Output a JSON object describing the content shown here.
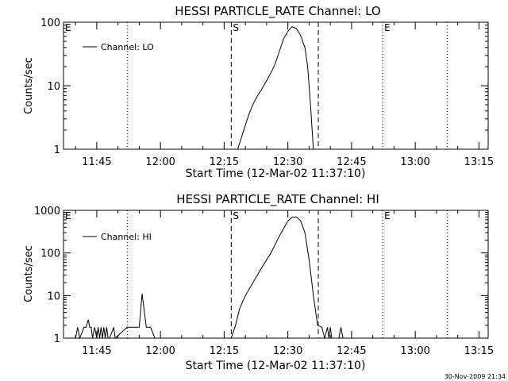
{
  "footer_timestamp": "30-Nov-2009 21:34",
  "chart_data": [
    {
      "type": "line",
      "title": "HESSI PARTICLE_RATE Channel: LO",
      "xlabel": "Start Time (12-Mar-02 11:37:10)",
      "ylabel": "Counts/sec",
      "yscale": "log",
      "ylim": [
        1,
        100
      ],
      "xlim": [
        "11:37:10",
        "13:17:10"
      ],
      "x_ticks": [
        "11:45",
        "12:00",
        "12:15",
        "12:30",
        "12:45",
        "13:00",
        "13:15"
      ],
      "y_ticks": [
        "1",
        "10",
        "100"
      ],
      "legend": {
        "label": "Channel: LO",
        "position": "top-left"
      },
      "markers": [
        {
          "label": "E",
          "time": "11:37:10",
          "style": "dotted"
        },
        {
          "label": "",
          "time": "11:52:10",
          "style": "dotted"
        },
        {
          "label": "S",
          "time": "12:16:40",
          "style": "dashed"
        },
        {
          "label": "",
          "time": "12:37:10",
          "style": "dashed"
        },
        {
          "label": "E",
          "time": "12:52:20",
          "style": "dotted"
        },
        {
          "label": "",
          "time": "13:07:30",
          "style": "dotted"
        }
      ],
      "series": [
        {
          "x": [
            "12:18:10",
            "12:19:10",
            "12:20:10",
            "12:21:00",
            "12:22:00",
            "12:23:00",
            "12:24:00",
            "12:25:00",
            "12:26:00",
            "12:27:00",
            "12:28:00",
            "12:29:00",
            "12:30:00",
            "12:31:00",
            "12:32:00",
            "12:33:00",
            "12:34:00",
            "12:34:40",
            "12:35:20",
            "12:36:00"
          ],
          "y": [
            1.0,
            1.6,
            2.6,
            3.8,
            5.5,
            7.2,
            9.2,
            12,
            16,
            22,
            35,
            55,
            72,
            85,
            80,
            62,
            40,
            20,
            5,
            1.0
          ]
        }
      ]
    },
    {
      "type": "line",
      "title": "HESSI PARTICLE_RATE Channel: HI",
      "xlabel": "Start Time (12-Mar-02 11:37:10)",
      "ylabel": "Counts/sec",
      "yscale": "log",
      "ylim": [
        1,
        1000
      ],
      "xlim": [
        "11:37:10",
        "13:17:10"
      ],
      "x_ticks": [
        "11:45",
        "12:00",
        "12:15",
        "12:30",
        "12:45",
        "13:00",
        "13:15"
      ],
      "y_ticks": [
        "1",
        "10",
        "100",
        "1000"
      ],
      "legend": {
        "label": "Channel: HI",
        "position": "top-left"
      },
      "markers": [
        {
          "label": "E",
          "time": "11:37:10",
          "style": "dotted"
        },
        {
          "label": "",
          "time": "11:52:10",
          "style": "dotted"
        },
        {
          "label": "S",
          "time": "12:16:40",
          "style": "dashed"
        },
        {
          "label": "",
          "time": "12:37:10",
          "style": "dashed"
        },
        {
          "label": "E",
          "time": "12:52:20",
          "style": "dotted"
        },
        {
          "label": "",
          "time": "13:07:30",
          "style": "dotted"
        }
      ],
      "series": [
        {
          "x": [
            "11:40:00",
            "11:40:30",
            "11:41:00",
            "11:42:00",
            "11:42:30",
            "11:43:00",
            "11:43:20",
            "11:43:40",
            "11:44:00",
            "11:44:30",
            "11:45:00",
            "11:45:20",
            "11:45:40",
            "11:46:00",
            "11:46:20",
            "11:46:40",
            "11:47:00",
            "11:47:20",
            "11:47:40",
            "11:48:00",
            "11:49:00",
            "11:49:20",
            "11:52:10",
            "11:55:00",
            "11:55:40",
            "11:56:40",
            "11:57:40",
            "11:58:40",
            "11:59:00",
            "12:16:40",
            "12:17:40",
            "12:18:40",
            "12:20:00",
            "12:22:00",
            "12:24:00",
            "12:26:00",
            "12:28:00",
            "12:30:00",
            "12:31:00",
            "12:32:00",
            "12:33:00",
            "12:34:00",
            "12:35:00",
            "12:36:00",
            "12:37:00",
            "12:38:00",
            "12:38:40",
            "12:39:20",
            "12:39:40",
            "12:40:00",
            "12:40:20",
            "12:42:00",
            "12:42:30",
            "12:43:00"
          ],
          "y": [
            1,
            1.8,
            1,
            1.8,
            1.8,
            2.7,
            1.8,
            1.8,
            1,
            1.8,
            1,
            1.8,
            1,
            1.8,
            1,
            1.8,
            1,
            1.8,
            1,
            1,
            1.8,
            1,
            1.8,
            1.8,
            11,
            1.8,
            1.8,
            1,
            1,
            1,
            2,
            5,
            10,
            22,
            48,
            100,
            250,
            560,
            690,
            700,
            570,
            300,
            70,
            10,
            2,
            1.8,
            1,
            1.8,
            1,
            1.8,
            1,
            1,
            1.8,
            1
          ]
        }
      ]
    }
  ]
}
